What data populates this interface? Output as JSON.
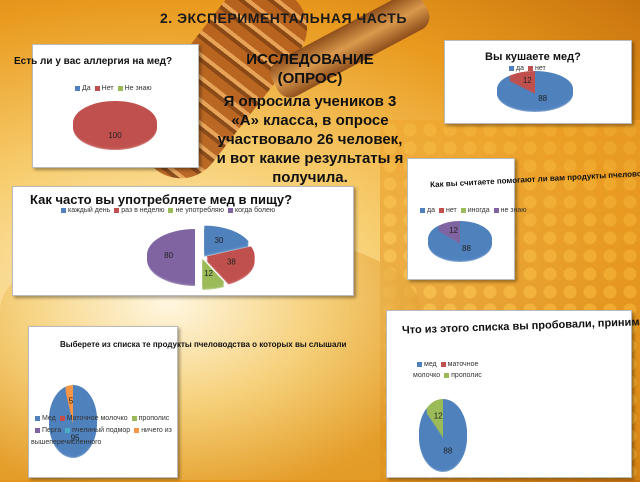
{
  "slide": {
    "title": "2. ЭКСПЕРИМЕНТАЛЬНАЯ ЧАСТЬ",
    "intro_line1": "ИССЛЕДОВАНИЕ (ОПРОС)",
    "intro_text": "Я опросила учеников 3 «А» класса, в опросе участвовало 26 человек, и вот какие результаты я получила."
  },
  "colors": {
    "blue": "#4f81bd",
    "red": "#c0504d",
    "green": "#9bbb59",
    "purple": "#8064a2",
    "cyan": "#4bacc6",
    "orange": "#f79646"
  },
  "chart_data": [
    {
      "id": "allergy",
      "type": "pie",
      "title": "Есть ли у вас аллергия на мед?",
      "legend": [
        "Да",
        "Нет",
        "Не знаю"
      ],
      "values": [
        0,
        100,
        0
      ],
      "labels": [
        "",
        "100",
        ""
      ]
    },
    {
      "id": "eat_honey",
      "type": "pie",
      "title": "Вы кушаете мед?",
      "legend": [
        "да",
        "нет"
      ],
      "values": [
        88,
        12
      ],
      "labels": [
        "88",
        "12"
      ]
    },
    {
      "id": "bee_products_help",
      "type": "pie",
      "title": "Как вы считаете помогают ли вам продукты пчеловодства?",
      "legend": [
        "да",
        "нет",
        "иногда",
        "не знаю"
      ],
      "values": [
        88,
        0,
        0,
        12
      ],
      "labels": [
        "88",
        "",
        "",
        "12"
      ]
    },
    {
      "id": "frequency",
      "type": "pie",
      "title": "Как часто вы употребляете мед в пищу?",
      "legend": [
        "каждый день",
        "раз в неделю",
        "не употребляю",
        "когда болею"
      ],
      "values": [
        30,
        38,
        12,
        80
      ],
      "labels": [
        "30",
        "38",
        "12",
        "80"
      ]
    },
    {
      "id": "heard_of",
      "type": "pie",
      "title": "Выберете из списка те продукты пчеловодства о которых вы слышали",
      "legend": [
        "Мед",
        "Маточное молочко",
        "прополис",
        "Перга",
        "пчелиный подмор",
        "ничего из вышеперечисленного"
      ],
      "values": [
        95,
        0,
        0,
        0,
        0,
        5
      ],
      "labels": [
        "95",
        "",
        "",
        "",
        "",
        "5"
      ]
    },
    {
      "id": "tried",
      "type": "pie",
      "title": "Что из этого списка вы пробовали, принимали?",
      "legend": [
        "мед",
        "маточное молочко",
        "прополис"
      ],
      "values": [
        88,
        0,
        12
      ],
      "labels": [
        "88",
        "",
        "12"
      ]
    }
  ]
}
